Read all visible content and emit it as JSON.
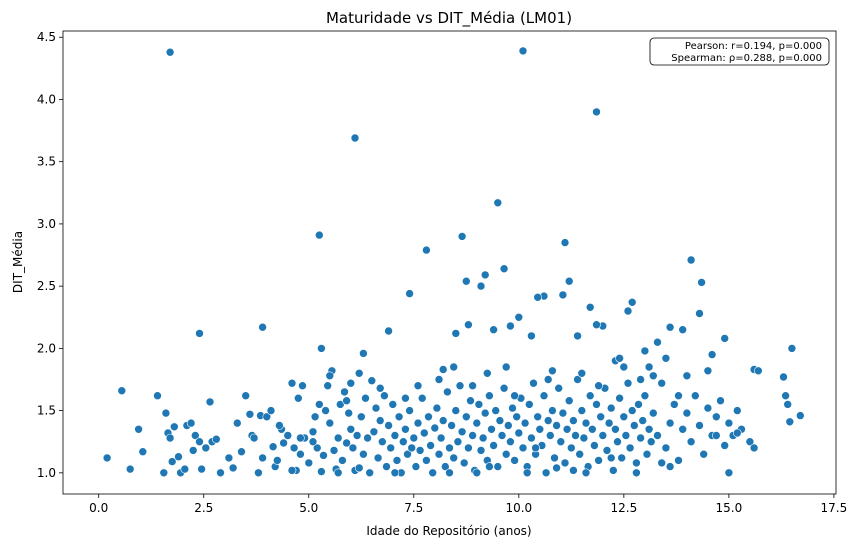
{
  "chart_data": {
    "type": "scatter",
    "title": "Maturidade vs DIT_Média (LM01)",
    "xlabel": "Idade do Repositório (anos)",
    "ylabel": "DIT_Média",
    "xlim": [
      -0.85,
      17.55
    ],
    "ylim": [
      0.83,
      4.55
    ],
    "xticks": [
      0.0,
      2.5,
      5.0,
      7.5,
      10.0,
      12.5,
      15.0,
      17.5
    ],
    "xtick_labels": [
      "0.0",
      "2.5",
      "5.0",
      "7.5",
      "10.0",
      "12.5",
      "15.0",
      "17.5"
    ],
    "yticks": [
      1.0,
      1.5,
      2.0,
      2.5,
      3.0,
      3.5,
      4.0,
      4.5
    ],
    "ytick_labels": [
      "1.0",
      "1.5",
      "2.0",
      "2.5",
      "3.0",
      "3.5",
      "4.0",
      "4.5"
    ],
    "grid": false,
    "marker_color": "#1f77b4",
    "annotation": {
      "lines": [
        "Pearson: r=0.194, p=0.000",
        "Spearman: ρ=0.288, p=0.000"
      ],
      "placement": "top-right"
    },
    "points": [
      [
        0.2,
        1.12
      ],
      [
        0.55,
        1.66
      ],
      [
        0.75,
        1.03
      ],
      [
        0.95,
        1.35
      ],
      [
        1.05,
        1.17
      ],
      [
        1.4,
        1.62
      ],
      [
        1.55,
        1.0
      ],
      [
        1.6,
        1.48
      ],
      [
        1.65,
        1.32
      ],
      [
        1.7,
        1.28
      ],
      [
        1.75,
        1.09
      ],
      [
        1.8,
        1.37
      ],
      [
        1.9,
        1.13
      ],
      [
        1.95,
        1.0
      ],
      [
        2.05,
        1.03
      ],
      [
        2.1,
        1.38
      ],
      [
        2.2,
        1.4
      ],
      [
        2.25,
        1.18
      ],
      [
        2.3,
        1.3
      ],
      [
        2.4,
        1.25
      ],
      [
        2.45,
        1.03
      ],
      [
        2.55,
        1.2
      ],
      [
        2.65,
        1.57
      ],
      [
        2.7,
        1.25
      ],
      [
        2.8,
        1.27
      ],
      [
        2.9,
        1.0
      ],
      [
        3.1,
        1.12
      ],
      [
        3.3,
        1.4
      ],
      [
        3.4,
        1.17
      ],
      [
        3.5,
        1.62
      ],
      [
        3.6,
        1.47
      ],
      [
        3.65,
        1.3
      ],
      [
        3.7,
        1.28
      ],
      [
        3.8,
        1.0
      ],
      [
        3.85,
        1.46
      ],
      [
        3.9,
        1.12
      ],
      [
        4.0,
        1.45
      ],
      [
        4.1,
        1.5
      ],
      [
        4.15,
        1.21
      ],
      [
        4.2,
        1.05
      ],
      [
        4.25,
        1.1
      ],
      [
        4.35,
        1.35
      ],
      [
        4.4,
        1.24
      ],
      [
        4.5,
        1.3
      ],
      [
        4.6,
        1.72
      ],
      [
        4.65,
        1.2
      ],
      [
        4.7,
        1.02
      ],
      [
        4.75,
        1.6
      ],
      [
        4.8,
        1.15
      ],
      [
        4.85,
        1.7
      ],
      [
        4.9,
        1.28
      ],
      [
        5.0,
        1.08
      ],
      [
        5.1,
        1.33
      ],
      [
        5.15,
        1.45
      ],
      [
        5.2,
        1.2
      ],
      [
        5.25,
        1.55
      ],
      [
        5.3,
        1.01
      ],
      [
        5.35,
        1.14
      ],
      [
        5.4,
        1.5
      ],
      [
        5.45,
        1.7
      ],
      [
        5.5,
        1.4
      ],
      [
        5.55,
        1.82
      ],
      [
        5.6,
        1.18
      ],
      [
        5.65,
        1.03
      ],
      [
        5.7,
        1.28
      ],
      [
        5.75,
        1.55
      ],
      [
        5.8,
        1.1
      ],
      [
        5.85,
        1.65
      ],
      [
        5.9,
        1.24
      ],
      [
        5.95,
        1.48
      ],
      [
        6.0,
        1.35
      ],
      [
        6.05,
        1.2
      ],
      [
        6.1,
        1.02
      ],
      [
        6.15,
        1.3
      ],
      [
        6.2,
        1.8
      ],
      [
        6.25,
        1.45
      ],
      [
        6.3,
        1.15
      ],
      [
        6.35,
        1.6
      ],
      [
        6.4,
        1.28
      ],
      [
        6.45,
        1.0
      ],
      [
        6.5,
        1.74
      ],
      [
        6.55,
        1.33
      ],
      [
        6.6,
        1.52
      ],
      [
        6.65,
        1.12
      ],
      [
        6.7,
        1.42
      ],
      [
        6.75,
        1.25
      ],
      [
        6.8,
        1.62
      ],
      [
        6.85,
        1.05
      ],
      [
        6.9,
        1.38
      ],
      [
        6.95,
        1.2
      ],
      [
        7.0,
        1.55
      ],
      [
        7.05,
        1.3
      ],
      [
        7.1,
        1.1
      ],
      [
        7.15,
        1.45
      ],
      [
        7.2,
        1.0
      ],
      [
        7.25,
        1.25
      ],
      [
        7.3,
        1.35
      ],
      [
        7.35,
        1.15
      ],
      [
        7.4,
        1.5
      ],
      [
        7.45,
        1.2
      ],
      [
        7.5,
        1.28
      ],
      [
        7.55,
        1.05
      ],
      [
        7.6,
        1.4
      ],
      [
        7.65,
        1.18
      ],
      [
        7.7,
        1.6
      ],
      [
        7.75,
        1.32
      ],
      [
        7.8,
        1.1
      ],
      [
        7.85,
        1.45
      ],
      [
        7.9,
        1.22
      ],
      [
        7.95,
        1.0
      ],
      [
        8.0,
        1.36
      ],
      [
        8.05,
        1.52
      ],
      [
        8.1,
        1.15
      ],
      [
        8.15,
        1.28
      ],
      [
        8.2,
        1.42
      ],
      [
        8.25,
        1.05
      ],
      [
        8.3,
        1.65
      ],
      [
        8.35,
        1.2
      ],
      [
        8.4,
        1.38
      ],
      [
        8.45,
        1.12
      ],
      [
        8.5,
        1.5
      ],
      [
        8.55,
        1.25
      ],
      [
        8.6,
        1.7
      ],
      [
        8.65,
        1.33
      ],
      [
        8.7,
        1.08
      ],
      [
        8.75,
        1.45
      ],
      [
        8.8,
        1.2
      ],
      [
        8.85,
        1.58
      ],
      [
        8.9,
        1.3
      ],
      [
        8.95,
        1.02
      ],
      [
        9.0,
        1.4
      ],
      [
        9.05,
        1.55
      ],
      [
        9.1,
        1.18
      ],
      [
        9.15,
        1.28
      ],
      [
        9.2,
        1.48
      ],
      [
        9.25,
        1.1
      ],
      [
        9.3,
        1.62
      ],
      [
        9.35,
        1.35
      ],
      [
        9.4,
        1.22
      ],
      [
        9.45,
        1.5
      ],
      [
        9.5,
        1.05
      ],
      [
        9.55,
        1.42
      ],
      [
        9.6,
        1.3
      ],
      [
        9.65,
        1.68
      ],
      [
        9.7,
        1.15
      ],
      [
        9.75,
        1.38
      ],
      [
        9.8,
        1.25
      ],
      [
        9.85,
        1.52
      ],
      [
        9.9,
        1.1
      ],
      [
        9.95,
        1.45
      ],
      [
        10.0,
        1.32
      ],
      [
        10.05,
        1.6
      ],
      [
        10.1,
        1.2
      ],
      [
        10.15,
        1.4
      ],
      [
        10.2,
        1.05
      ],
      [
        10.25,
        1.55
      ],
      [
        10.3,
        1.28
      ],
      [
        10.35,
        1.72
      ],
      [
        10.4,
        1.15
      ],
      [
        10.45,
        1.45
      ],
      [
        10.5,
        1.35
      ],
      [
        10.55,
        1.22
      ],
      [
        10.6,
        1.62
      ],
      [
        10.65,
        1.0
      ],
      [
        10.7,
        1.42
      ],
      [
        10.75,
        1.3
      ],
      [
        10.8,
        1.5
      ],
      [
        10.85,
        1.12
      ],
      [
        10.9,
        1.38
      ],
      [
        10.95,
        1.68
      ],
      [
        11.0,
        1.25
      ],
      [
        11.05,
        1.48
      ],
      [
        11.1,
        1.08
      ],
      [
        11.15,
        1.35
      ],
      [
        11.2,
        1.58
      ],
      [
        11.25,
        1.2
      ],
      [
        11.3,
        1.42
      ],
      [
        11.35,
        1.3
      ],
      [
        11.4,
        1.75
      ],
      [
        11.45,
        1.15
      ],
      [
        11.5,
        1.5
      ],
      [
        11.55,
        1.28
      ],
      [
        11.6,
        1.4
      ],
      [
        11.65,
        1.05
      ],
      [
        11.7,
        1.62
      ],
      [
        11.75,
        1.35
      ],
      [
        11.8,
        1.22
      ],
      [
        11.85,
        1.55
      ],
      [
        11.9,
        1.1
      ],
      [
        11.95,
        1.45
      ],
      [
        12.0,
        1.3
      ],
      [
        12.05,
        1.68
      ],
      [
        12.1,
        1.18
      ],
      [
        12.15,
        1.4
      ],
      [
        12.2,
        1.52
      ],
      [
        12.25,
        1.02
      ],
      [
        12.3,
        1.35
      ],
      [
        12.35,
        1.25
      ],
      [
        12.4,
        1.6
      ],
      [
        12.45,
        1.12
      ],
      [
        12.5,
        1.45
      ],
      [
        12.55,
        1.3
      ],
      [
        12.6,
        1.72
      ],
      [
        12.65,
        1.2
      ],
      [
        12.7,
        1.5
      ],
      [
        12.75,
        1.38
      ],
      [
        12.8,
        1.08
      ],
      [
        12.85,
        1.55
      ],
      [
        12.9,
        1.28
      ],
      [
        12.95,
        1.42
      ],
      [
        13.0,
        1.62
      ],
      [
        13.05,
        1.15
      ],
      [
        13.1,
        1.35
      ],
      [
        13.15,
        1.25
      ],
      [
        13.2,
        1.48
      ],
      [
        13.3,
        1.3
      ],
      [
        13.4,
        1.72
      ],
      [
        13.5,
        1.2
      ],
      [
        13.6,
        1.4
      ],
      [
        13.7,
        1.55
      ],
      [
        13.8,
        1.1
      ],
      [
        13.9,
        1.35
      ],
      [
        14.0,
        1.48
      ],
      [
        14.1,
        1.25
      ],
      [
        14.2,
        1.62
      ],
      [
        14.3,
        1.38
      ],
      [
        14.4,
        1.15
      ],
      [
        14.5,
        1.52
      ],
      [
        14.6,
        1.3
      ],
      [
        14.7,
        1.45
      ],
      [
        14.8,
        1.58
      ],
      [
        14.9,
        1.22
      ],
      [
        15.0,
        1.4
      ],
      [
        15.1,
        1.3
      ],
      [
        15.2,
        1.5
      ],
      [
        15.3,
        1.35
      ],
      [
        15.5,
        1.25
      ],
      [
        15.6,
        1.83
      ],
      [
        15.7,
        1.82
      ],
      [
        16.3,
        1.77
      ],
      [
        16.35,
        1.62
      ],
      [
        16.4,
        1.55
      ],
      [
        16.45,
        1.41
      ],
      [
        16.5,
        2.0
      ],
      [
        16.7,
        1.46
      ],
      [
        15.6,
        1.2
      ],
      [
        15.0,
        1.0
      ],
      [
        14.9,
        2.08
      ],
      [
        14.6,
        1.95
      ],
      [
        14.3,
        2.28
      ],
      [
        14.35,
        2.53
      ],
      [
        14.1,
        2.71
      ],
      [
        13.9,
        2.15
      ],
      [
        13.6,
        2.17
      ],
      [
        13.3,
        2.05
      ],
      [
        13.0,
        1.98
      ],
      [
        12.7,
        2.37
      ],
      [
        12.6,
        2.3
      ],
      [
        12.3,
        1.9
      ],
      [
        12.0,
        2.18
      ],
      [
        11.85,
        2.19
      ],
      [
        11.7,
        2.33
      ],
      [
        11.4,
        2.1
      ],
      [
        11.2,
        2.54
      ],
      [
        11.1,
        2.85
      ],
      [
        11.05,
        2.43
      ],
      [
        10.6,
        2.42
      ],
      [
        10.45,
        2.41
      ],
      [
        10.3,
        2.1
      ],
      [
        10.0,
        2.25
      ],
      [
        9.8,
        2.18
      ],
      [
        9.65,
        2.64
      ],
      [
        9.4,
        2.15
      ],
      [
        9.2,
        2.59
      ],
      [
        9.1,
        2.5
      ],
      [
        8.75,
        2.54
      ],
      [
        8.65,
        2.9
      ],
      [
        8.8,
        2.19
      ],
      [
        8.5,
        2.12
      ],
      [
        8.2,
        1.83
      ],
      [
        7.8,
        2.79
      ],
      [
        7.4,
        2.44
      ],
      [
        6.9,
        2.14
      ],
      [
        6.3,
        1.96
      ],
      [
        5.3,
        2.0
      ],
      [
        5.25,
        2.91
      ],
      [
        3.9,
        2.17
      ],
      [
        2.4,
        2.12
      ],
      [
        6.1,
        3.69
      ],
      [
        9.5,
        3.17
      ],
      [
        11.85,
        3.9
      ],
      [
        10.1,
        4.39
      ],
      [
        1.7,
        4.38
      ],
      [
        10.4,
        1.2
      ],
      [
        9.9,
        1.62
      ],
      [
        8.9,
        1.7
      ],
      [
        11.5,
        1.8
      ],
      [
        12.5,
        1.85
      ],
      [
        13.2,
        1.78
      ],
      [
        7.6,
        1.7
      ],
      [
        6.7,
        1.68
      ],
      [
        5.9,
        1.58
      ],
      [
        5.1,
        1.25
      ],
      [
        4.6,
        1.02
      ],
      [
        3.2,
        1.04
      ],
      [
        8.35,
        1.0
      ],
      [
        9.0,
        1.0
      ],
      [
        10.2,
        1.0
      ],
      [
        11.3,
        1.02
      ],
      [
        12.8,
        1.0
      ],
      [
        13.6,
        1.05
      ],
      [
        7.05,
        1.0
      ],
      [
        6.2,
        1.04
      ],
      [
        5.7,
        1.0
      ],
      [
        9.3,
        1.05
      ],
      [
        10.9,
        1.04
      ],
      [
        11.6,
        1.0
      ],
      [
        12.2,
        1.12
      ],
      [
        13.4,
        1.08
      ],
      [
        14.7,
        1.3
      ],
      [
        15.2,
        1.32
      ],
      [
        14.0,
        1.78
      ],
      [
        14.5,
        1.82
      ],
      [
        13.8,
        1.62
      ],
      [
        8.1,
        1.75
      ],
      [
        7.3,
        1.6
      ],
      [
        9.7,
        1.85
      ],
      [
        10.8,
        1.82
      ],
      [
        11.9,
        1.7
      ],
      [
        12.4,
        1.92
      ],
      [
        13.1,
        1.85
      ],
      [
        6.0,
        1.72
      ],
      [
        5.5,
        1.78
      ],
      [
        4.8,
        1.28
      ],
      [
        4.3,
        1.38
      ],
      [
        8.45,
        1.85
      ],
      [
        9.25,
        1.8
      ],
      [
        10.7,
        1.75
      ],
      [
        12.9,
        1.75
      ],
      [
        13.5,
        1.92
      ]
    ]
  }
}
